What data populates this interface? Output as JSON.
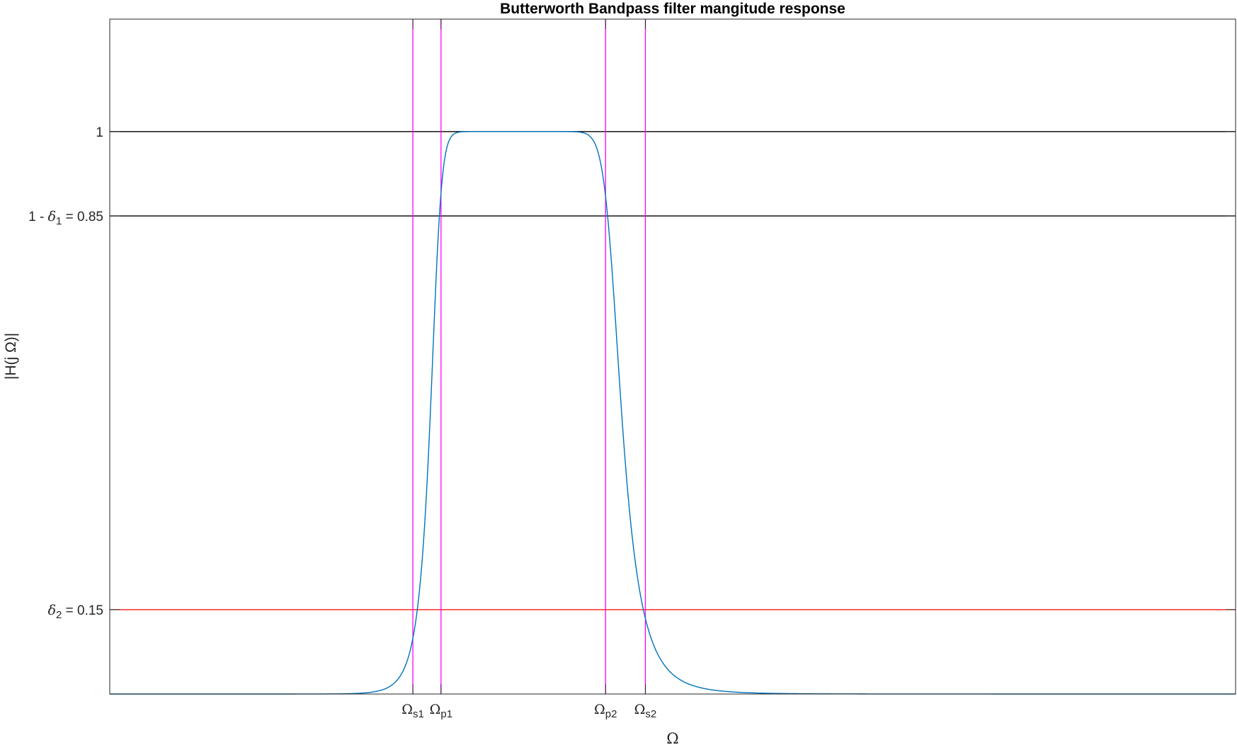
{
  "chart_data": {
    "type": "line",
    "title": "Butterworth Bandpass filter mangitude response",
    "xlabel": "Ω",
    "ylabel": "|H(j Ω)|",
    "xlim": [
      0,
      2.6
    ],
    "ylim": [
      0,
      1.2
    ],
    "grid": false,
    "y_ticks": [
      {
        "value": 0.15,
        "parts": [
          {
            "t": "δ",
            "style": "greek"
          },
          {
            "t": "2",
            "style": "sub"
          },
          {
            "t": " = 0.15"
          }
        ]
      },
      {
        "value": 0.85,
        "parts": [
          {
            "t": "1 - "
          },
          {
            "t": "δ",
            "style": "greek"
          },
          {
            "t": "1",
            "style": "sub"
          },
          {
            "t": " = 0.85"
          }
        ]
      },
      {
        "value": 1,
        "parts": [
          {
            "t": "1"
          }
        ]
      }
    ],
    "x_ticks": [
      {
        "value": 0.7,
        "base": "Ω",
        "sub": "s1"
      },
      {
        "value": 0.765,
        "base": "Ω",
        "sub": "p1"
      },
      {
        "value": 1.145,
        "base": "Ω",
        "sub": "p2"
      },
      {
        "value": 1.237,
        "base": "Ω",
        "sub": "s2"
      }
    ],
    "h_lines": [
      {
        "value": 1,
        "color": "#000000"
      },
      {
        "value": 0.85,
        "color": "#000000"
      },
      {
        "value": 0.15,
        "color": "#ff0000"
      }
    ],
    "v_lines": [
      {
        "value": 0.7,
        "color": "#ff00ff"
      },
      {
        "value": 0.765,
        "color": "#ff00ff"
      },
      {
        "value": 1.145,
        "color": "#ff00ff"
      },
      {
        "value": 1.237,
        "color": "#ff00ff"
      }
    ],
    "series": [
      {
        "color": "#0072bd",
        "model": "butterworth_bandpass",
        "order": 8,
        "omega_c1": 0.7518,
        "omega_c2": 1.1642,
        "x_range": [
          0,
          2.6
        ]
      }
    ]
  }
}
